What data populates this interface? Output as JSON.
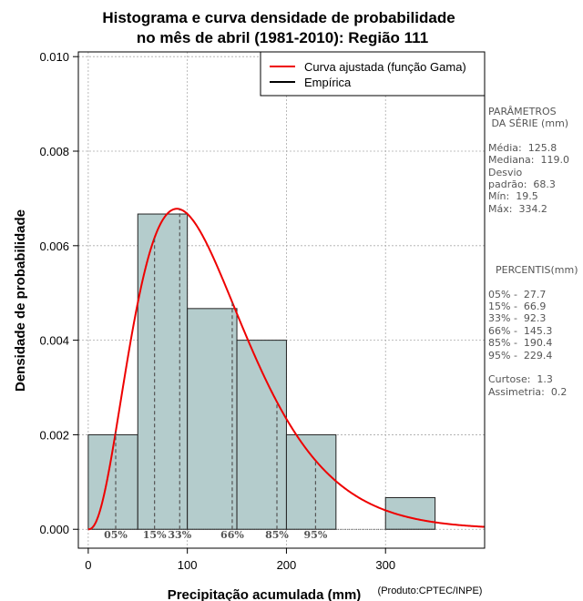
{
  "chart_data": {
    "type": "histogram",
    "title": "Histograma e curva densidade de probabilidade",
    "subtitle": "no mês de abril (1981-2010): Região 111",
    "xlabel": "Precipitação acumulada (mm)",
    "ylabel": "Densidade de probabilidade",
    "credit": "(Produto:CPTEC/INPE)",
    "xlim": [
      -10,
      400
    ],
    "ylim": [
      -0.0004,
      0.0101
    ],
    "x_ticks": [
      0,
      100,
      200,
      300
    ],
    "x_tick_labels": [
      "0",
      "100",
      "200",
      "300"
    ],
    "y_ticks": [
      0.0,
      0.002,
      0.004,
      0.006,
      0.008,
      0.01
    ],
    "y_tick_labels": [
      "0.000",
      "0.002",
      "0.004",
      "0.006",
      "0.008",
      "0.010"
    ],
    "grid": true,
    "bins": [
      {
        "x0": 0,
        "x1": 50,
        "density": 0.002
      },
      {
        "x0": 50,
        "x1": 100,
        "density": 0.00667
      },
      {
        "x0": 100,
        "x1": 150,
        "density": 0.00467
      },
      {
        "x0": 150,
        "x1": 200,
        "density": 0.004
      },
      {
        "x0": 200,
        "x1": 250,
        "density": 0.002
      },
      {
        "x0": 250,
        "x1": 300,
        "density": 0.0
      },
      {
        "x0": 300,
        "x1": 350,
        "density": 0.00067
      }
    ],
    "gamma_curve": {
      "name": "Curva ajustada (função Gama)",
      "shape": 3.47,
      "scale": 36.2,
      "color": "#ee0000"
    },
    "empirica": {
      "name": "Empírica",
      "color": "#000000"
    },
    "legend_position": "top-right",
    "percentiles": [
      {
        "label": "05%",
        "value": 27.7
      },
      {
        "label": "15%",
        "value": 66.9
      },
      {
        "label": "33%",
        "value": 92.3
      },
      {
        "label": "66%",
        "value": 145.3
      },
      {
        "label": "85%",
        "value": 190.4
      },
      {
        "label": "95%",
        "value": 229.4
      }
    ],
    "colors": {
      "bar_fill": "#b4cccc",
      "bar_stroke": "#222222",
      "grid": "#aaaaaa",
      "percentile_line": "#555555",
      "percentile_label": "#555555"
    }
  },
  "side_panel": {
    "params_title_1": "PARÂMETROS",
    "params_title_2": " DA SÉRIE (mm)",
    "media": "Média:  125.8",
    "mediana": "Mediana:  119.0",
    "desvio_1": "Desvio",
    "desvio_2": "padrão:  68.3",
    "min": "Mín:  19.5",
    "max": "Máx:  334.2",
    "percentis_title": "PERCENTIS(mm)",
    "p05": "05% -  27.7",
    "p15": "15% -  66.9",
    "p33": "33% -  92.3",
    "p66": "66% -  145.3",
    "p85": "85% -  190.4",
    "p95": "95% -  229.4",
    "curtose": "Curtose:  1.3",
    "assimetria": "Assimetria:  0.2"
  }
}
